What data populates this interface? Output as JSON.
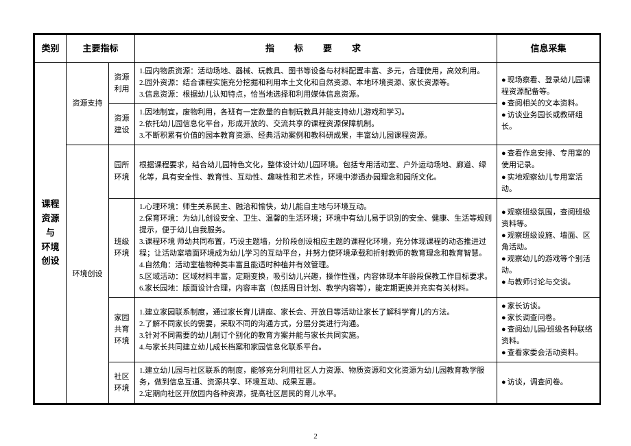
{
  "page_number": "2",
  "headers": {
    "category": "类别",
    "main_indicator": "主要指标",
    "requirement": "指　标　要　求",
    "info": "信息采集"
  },
  "category_label": "课程资源　与　环境创设",
  "sections": [
    {
      "main": "资源支持",
      "rows": [
        {
          "sub": "资源利用",
          "req": "1.园内物质资源：活动场地、器械、玩教具、图书等设备与材料配置丰富、多元，合理使用，高效利用。\n2.园外资源：结合课程实施充分挖掘和利用本土文化和自然资源、本地环境资源、家长资源等。\n3.信息资源：根据幼儿认知特点，恰当地选择和利用媒体信息资源。"
        },
        {
          "sub": "资源建设",
          "req": "1.因地制宜，废物利用，各班有一定数量的自制玩教具并能支持幼儿游戏和学习。\n2.依托幼儿园信息化平台，形成开放的、交流共享的课程资源保障机制。\n3.不断积累有价值的园本教育资源、经典活动案例和教科研成果，丰富幼儿园课程资源。"
        }
      ],
      "info": [
        "现场察看、登录幼儿园课程资源配备等。",
        "查阅相关的文本资料。",
        "访谈业务园长或教研组长。"
      ]
    },
    {
      "main": "环境创设",
      "rows": [
        {
          "sub": "园所环境",
          "req": "根据课程要求，结合幼儿园特色文化，整体设计幼儿园环境。包括专用活动室、户外运动场地、廊道、绿化等，具有安全性、教育性、互动性、趣味性和艺术性，环境中渗透办园理念和园所文化。",
          "info": [
            "查看作息安排、专用室的使用记录。",
            "实地观察幼儿专用室活动。"
          ]
        },
        {
          "sub": "班级环境",
          "req": "1.心理环境：师生关系民主、融洽和愉快，幼儿能自主地与环境互动。\n2.保育环境：为幼儿创设安全、卫生、温馨的生活环境；环境中有幼儿易于识别的安全、健康、生活等规则提示，便于幼儿自我服务。\n3.课程环境 师幼共同布置，巧设主题墙，分阶段创设相应主题的课程化环境，充分体现课程的动态推进过程；让活动室墙面环境成为幼儿学习的互动平台，并努力使环境承载和折射教师的教育理念和教育智慧。\n4.自然角：活动室植物种类丰富且能适时种植并有效管理。\n5.区域活动：区域材料丰富，定期变换，吸引幼儿兴趣，操作性强，内容体现本年龄段保教工作目标要求。\n6.家长园地：版面设计合理，内容丰富（包括周日计划、教学内容等），能定期更换并充实有关材料。",
          "info": [
            "观察班级氛围，查阅班级资料等。",
            "观察班级设施、墙面、区角活动。",
            "观察幼儿的游戏等个别活动。",
            "与教师讨论与交谈。"
          ]
        },
        {
          "sub": "家园共育环境",
          "req": "1.建立家园联系制度，通过家长育儿讲座、家长会、开放日等活动让家长了解科学育儿的方法。\n2.了解不同家长的需要，采取不同的沟通方式，分层分类进行沟通。\n3.针对不同需要的幼儿制订个别化的教育方案并能与家长共同实施。\n4.与家长共同建立幼儿成长档案和家园信息化联系平台。",
          "info": [
            "家长访谈。",
            "家长调查问卷。",
            "查阅幼儿园/班级各种联络资料。",
            "查看家委会活动资料。"
          ]
        },
        {
          "sub": "社区环境",
          "req": "1.建立幼儿园与社区联系的制度，能够充分利用社区人力资源、物质资源和文化资源为幼儿园教育教学服务，做到信息互通、资源共享、环境互动、成果互惠。\n2.定期向社区开放园内各种资源，提高社区居民的育儿水平。",
          "info": [
            "访谈，调查问卷。"
          ]
        }
      ]
    }
  ]
}
